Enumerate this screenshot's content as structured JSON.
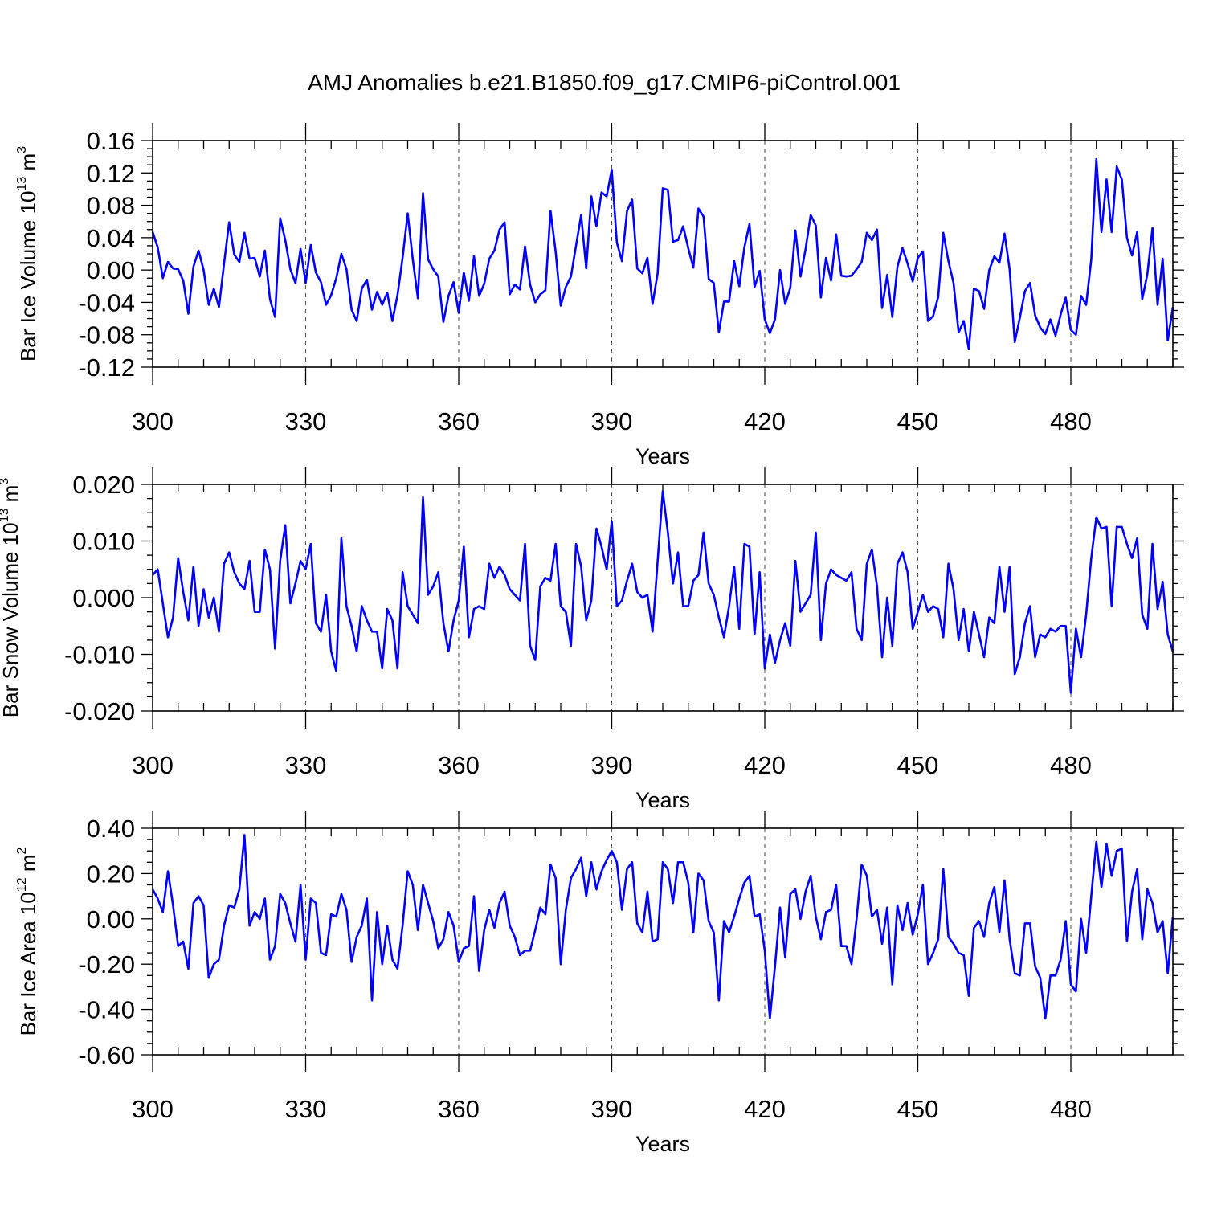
{
  "title": "AMJ Anomalies b.e21.B1850.f09_g17.CMIP6-piControl.001",
  "colors": {
    "series": "#0000ff",
    "axes": "#000000",
    "grid": "#555555"
  },
  "chart_data": [
    {
      "type": "line",
      "series_name": "Bar Ice Volume",
      "ylabel": {
        "base": "Bar Ice Volume 10",
        "exp": "13",
        "unit": " m",
        "unit_exp": "3"
      },
      "xlabel": "Years",
      "xlim": [
        300,
        500
      ],
      "ylim": [
        -0.12,
        0.16
      ],
      "xticks": [
        300,
        330,
        360,
        390,
        420,
        450,
        480
      ],
      "xtick_labels": [
        "300",
        "330",
        "360",
        "390",
        "420",
        "450",
        "480"
      ],
      "yticks": [
        -0.12,
        -0.08,
        -0.04,
        0.0,
        0.04,
        0.08,
        0.12,
        0.16
      ],
      "ytick_labels": [
        "-0.12",
        "-0.08",
        "-0.04",
        "0.00",
        "0.04",
        "0.08",
        "0.12",
        "0.16"
      ],
      "x_start": 300,
      "values": [
        0.047,
        0.028,
        -0.01,
        0.01,
        0.002,
        0.001,
        -0.013,
        -0.054,
        0.004,
        0.024,
        0.0,
        -0.043,
        -0.023,
        -0.046,
        0.008,
        0.059,
        0.019,
        0.01,
        0.046,
        0.014,
        0.015,
        -0.008,
        0.024,
        -0.036,
        -0.058,
        0.064,
        0.037,
        0.001,
        -0.016,
        0.026,
        -0.016,
        0.031,
        -0.003,
        -0.015,
        -0.043,
        -0.031,
        -0.01,
        0.02,
        0.001,
        -0.049,
        -0.063,
        -0.023,
        -0.012,
        -0.049,
        -0.027,
        -0.043,
        -0.028,
        -0.063,
        -0.031,
        0.015,
        0.07,
        0.013,
        -0.035,
        0.095,
        0.013,
        0.001,
        -0.008,
        -0.064,
        -0.032,
        -0.015,
        -0.053,
        -0.003,
        -0.038,
        0.017,
        -0.032,
        -0.017,
        0.014,
        0.024,
        0.05,
        0.059,
        -0.03,
        -0.018,
        -0.024,
        0.029,
        -0.018,
        -0.04,
        -0.03,
        -0.025,
        0.073,
        0.023,
        -0.044,
        -0.021,
        -0.008,
        0.03,
        0.068,
        0.002,
        0.091,
        0.054,
        0.096,
        0.091,
        0.124,
        0.034,
        0.011,
        0.073,
        0.087,
        0.002,
        -0.004,
        0.015,
        -0.042,
        -0.004,
        0.101,
        0.099,
        0.035,
        0.037,
        0.054,
        0.027,
        0.003,
        0.076,
        0.066,
        -0.011,
        -0.016,
        -0.077,
        -0.039,
        -0.039,
        0.011,
        -0.02,
        0.028,
        0.057,
        -0.021,
        -0.001,
        -0.061,
        -0.078,
        -0.061,
        0.0,
        -0.042,
        -0.022,
        0.049,
        -0.008,
        0.026,
        0.068,
        0.055,
        -0.034,
        0.015,
        -0.013,
        0.044,
        -0.007,
        -0.008,
        -0.007,
        0.001,
        0.01,
        0.046,
        0.037,
        0.05,
        -0.047,
        -0.006,
        -0.058,
        0.004,
        0.027,
        0.008,
        -0.014,
        0.015,
        0.023,
        -0.063,
        -0.057,
        -0.033,
        0.046,
        0.011,
        -0.016,
        -0.077,
        -0.063,
        -0.098,
        -0.023,
        -0.026,
        -0.048,
        0.0,
        0.017,
        0.009,
        0.045,
        0.001,
        -0.089,
        -0.059,
        -0.026,
        -0.016,
        -0.056,
        -0.071,
        -0.079,
        -0.061,
        -0.081,
        -0.055,
        -0.034,
        -0.074,
        -0.08,
        -0.032,
        -0.043,
        0.013,
        0.137,
        0.047,
        0.112,
        0.047,
        0.128,
        0.112,
        0.04,
        0.018,
        0.047,
        -0.036,
        -0.005,
        0.052,
        -0.043,
        0.014,
        -0.087,
        -0.046
      ]
    },
    {
      "type": "line",
      "series_name": "Bar Snow Volume",
      "ylabel": {
        "base": "Bar Snow Volume 10",
        "exp": "13",
        "unit": " m",
        "unit_exp": "3"
      },
      "xlabel": "Years",
      "xlim": [
        300,
        500
      ],
      "ylim": [
        -0.02,
        0.02
      ],
      "xticks": [
        300,
        330,
        360,
        390,
        420,
        450,
        480
      ],
      "xtick_labels": [
        "300",
        "330",
        "360",
        "390",
        "420",
        "450",
        "480"
      ],
      "yticks": [
        -0.02,
        -0.01,
        0.0,
        0.01,
        0.02
      ],
      "ytick_labels": [
        "-0.020",
        "-0.010",
        "0.000",
        "0.010",
        "0.020"
      ],
      "x_start": 300,
      "values": [
        0.004,
        0.005,
        -0.001,
        -0.007,
        -0.0035,
        0.007,
        0.001,
        -0.004,
        0.0055,
        -0.005,
        0.0015,
        -0.0035,
        0.0,
        -0.006,
        0.006,
        0.008,
        0.0045,
        0.0025,
        0.0015,
        0.0065,
        -0.0025,
        -0.0025,
        0.0085,
        0.005,
        -0.009,
        0.0065,
        0.0128,
        -0.001,
        0.0025,
        0.0065,
        0.005,
        0.0095,
        -0.0045,
        -0.006,
        0.0005,
        -0.0095,
        -0.013,
        0.0105,
        -0.0015,
        -0.005,
        -0.0095,
        -0.0015,
        -0.004,
        -0.006,
        -0.006,
        -0.0125,
        -0.002,
        -0.004,
        -0.0125,
        0.0045,
        -0.0015,
        -0.003,
        -0.0045,
        0.0177,
        0.0005,
        0.002,
        0.0045,
        -0.0045,
        -0.0095,
        -0.004,
        -0.0005,
        0.009,
        -0.007,
        -0.002,
        -0.0015,
        -0.002,
        0.006,
        0.0035,
        0.0055,
        0.004,
        0.0015,
        0.0005,
        -0.0005,
        0.0095,
        -0.0085,
        -0.011,
        0.002,
        0.0035,
        0.003,
        0.0095,
        -0.0015,
        -0.0025,
        -0.0085,
        0.0095,
        0.0055,
        -0.004,
        -0.0005,
        0.0122,
        0.009,
        0.005,
        0.0135,
        -0.0015,
        -0.0005,
        0.003,
        0.006,
        0.001,
        0.0,
        0.0005,
        -0.006,
        0.0065,
        0.0188,
        0.0115,
        0.0025,
        0.008,
        -0.0015,
        -0.0015,
        0.003,
        0.004,
        0.0115,
        0.0025,
        0.0005,
        -0.0035,
        -0.007,
        -0.0015,
        0.0055,
        -0.0055,
        0.0095,
        0.009,
        -0.0065,
        0.0045,
        -0.0125,
        -0.0065,
        -0.0115,
        -0.0075,
        -0.0045,
        -0.0085,
        0.0065,
        -0.0025,
        -0.001,
        0.0005,
        0.0115,
        -0.0075,
        0.0025,
        0.005,
        0.004,
        0.0035,
        0.003,
        0.0045,
        -0.0055,
        -0.0075,
        0.006,
        0.0085,
        0.002,
        -0.0105,
        0.0,
        -0.0085,
        0.006,
        0.008,
        0.0045,
        -0.0055,
        -0.0025,
        0.0005,
        -0.0025,
        -0.0015,
        -0.002,
        -0.007,
        0.006,
        0.0015,
        -0.0075,
        -0.002,
        -0.0095,
        -0.0025,
        -0.0065,
        -0.0105,
        -0.0035,
        -0.0045,
        0.0055,
        -0.0025,
        0.0055,
        -0.0135,
        -0.0105,
        -0.0045,
        -0.0015,
        -0.0105,
        -0.0065,
        -0.007,
        -0.0055,
        -0.006,
        -0.005,
        -0.005,
        -0.0168,
        -0.0055,
        -0.0105,
        -0.003,
        0.007,
        0.0142,
        0.0122,
        0.0125,
        -0.0015,
        0.0125,
        0.0125,
        0.0095,
        0.007,
        0.0105,
        -0.003,
        -0.0055,
        0.0095,
        -0.002,
        0.0028,
        -0.0065,
        -0.0095
      ]
    },
    {
      "type": "line",
      "series_name": "Bar Ice Area",
      "ylabel": {
        "base": "Bar Ice Area 10",
        "exp": "12",
        "unit": " m",
        "unit_exp": "2"
      },
      "xlabel": "Years",
      "xlim": [
        300,
        500
      ],
      "ylim": [
        -0.6,
        0.4
      ],
      "xticks": [
        300,
        330,
        360,
        390,
        420,
        450,
        480
      ],
      "xtick_labels": [
        "300",
        "330",
        "360",
        "390",
        "420",
        "450",
        "480"
      ],
      "yticks": [
        -0.6,
        -0.4,
        -0.2,
        0.0,
        0.2,
        0.4
      ],
      "ytick_labels": [
        "-0.60",
        "-0.40",
        "-0.20",
        "0.00",
        "0.20",
        "0.40"
      ],
      "x_start": 300,
      "values": [
        0.13,
        0.09,
        0.03,
        0.21,
        0.06,
        -0.12,
        -0.1,
        -0.22,
        0.07,
        0.1,
        0.06,
        -0.26,
        -0.2,
        -0.18,
        -0.03,
        0.06,
        0.05,
        0.13,
        0.37,
        -0.03,
        0.03,
        0.0,
        0.09,
        -0.18,
        -0.12,
        0.11,
        0.07,
        -0.02,
        -0.1,
        0.15,
        -0.18,
        0.09,
        0.07,
        -0.15,
        -0.16,
        0.02,
        0.01,
        0.11,
        0.04,
        -0.19,
        -0.08,
        -0.03,
        0.09,
        -0.36,
        0.03,
        -0.2,
        -0.03,
        -0.18,
        -0.22,
        -0.03,
        0.21,
        0.15,
        -0.05,
        0.15,
        0.07,
        -0.01,
        -0.13,
        -0.09,
        0.03,
        -0.03,
        -0.19,
        -0.13,
        -0.12,
        0.1,
        -0.23,
        -0.05,
        0.04,
        -0.04,
        0.07,
        0.12,
        -0.03,
        -0.08,
        -0.16,
        -0.14,
        -0.14,
        -0.05,
        0.05,
        0.02,
        0.24,
        0.18,
        -0.2,
        0.04,
        0.18,
        0.22,
        0.27,
        0.1,
        0.25,
        0.13,
        0.21,
        0.26,
        0.3,
        0.25,
        0.04,
        0.22,
        0.25,
        -0.02,
        -0.06,
        0.12,
        -0.1,
        -0.09,
        0.25,
        0.22,
        0.07,
        0.25,
        0.25,
        0.16,
        -0.06,
        0.2,
        0.17,
        -0.01,
        -0.06,
        -0.36,
        -0.01,
        -0.06,
        0.01,
        0.09,
        0.16,
        0.19,
        0.01,
        0.02,
        -0.14,
        -0.44,
        -0.21,
        0.05,
        -0.17,
        0.11,
        0.13,
        0.0,
        0.12,
        0.19,
        0.01,
        -0.09,
        0.03,
        0.04,
        0.15,
        -0.12,
        -0.12,
        -0.2,
        0.0,
        0.24,
        0.19,
        0.01,
        0.04,
        -0.11,
        0.05,
        -0.29,
        0.06,
        -0.05,
        0.07,
        -0.07,
        0.02,
        0.15,
        -0.2,
        -0.15,
        -0.09,
        0.22,
        -0.08,
        -0.11,
        -0.15,
        -0.16,
        -0.34,
        -0.04,
        -0.01,
        -0.08,
        0.07,
        0.14,
        -0.06,
        0.17,
        -0.09,
        -0.24,
        -0.25,
        -0.02,
        -0.02,
        -0.21,
        -0.26,
        -0.44,
        -0.25,
        -0.25,
        -0.18,
        -0.01,
        -0.29,
        -0.32,
        0.0,
        -0.15,
        0.1,
        0.34,
        0.14,
        0.33,
        0.19,
        0.3,
        0.31,
        -0.1,
        0.12,
        0.22,
        -0.09,
        0.13,
        0.07,
        -0.06,
        -0.01,
        -0.24,
        0.01
      ]
    }
  ]
}
